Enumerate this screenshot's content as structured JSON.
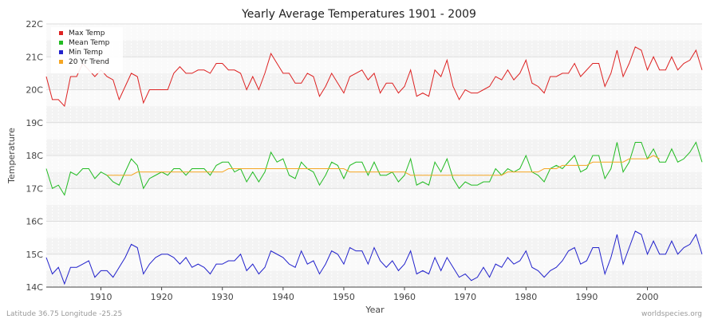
{
  "chart_data": {
    "type": "line",
    "title": "Yearly Average Temperatures 1901 - 2009",
    "xlabel": "Year",
    "ylabel": "Temperature",
    "xlim": [
      1901,
      2009
    ],
    "ylim": [
      14,
      22
    ],
    "x_ticks": [
      1910,
      1920,
      1930,
      1940,
      1950,
      1960,
      1970,
      1980,
      1990,
      2000
    ],
    "y_ticks": [
      {
        "value": 14,
        "label": "14C"
      },
      {
        "value": 15,
        "label": "15C"
      },
      {
        "value": 16,
        "label": "16C"
      },
      {
        "value": 17,
        "label": "17C"
      },
      {
        "value": 18,
        "label": "18C"
      },
      {
        "value": 19,
        "label": "19C"
      },
      {
        "value": 20,
        "label": "20C"
      },
      {
        "value": 21,
        "label": "21C"
      },
      {
        "value": 22,
        "label": "22C"
      }
    ],
    "grid": true,
    "legend_position": "top-left",
    "series": [
      {
        "name": "Max Temp",
        "color": "#dd2222",
        "x_start": 1901,
        "values": [
          20.4,
          19.7,
          19.7,
          19.5,
          20.4,
          20.4,
          20.8,
          20.6,
          20.4,
          20.6,
          20.4,
          20.3,
          19.7,
          20.1,
          20.5,
          20.4,
          19.6,
          20.0,
          20.0,
          20.0,
          20.0,
          20.5,
          20.7,
          20.5,
          20.5,
          20.6,
          20.6,
          20.5,
          20.8,
          20.8,
          20.6,
          20.6,
          20.5,
          20.0,
          20.4,
          20.0,
          20.5,
          21.1,
          20.8,
          20.5,
          20.5,
          20.2,
          20.2,
          20.5,
          20.4,
          19.8,
          20.1,
          20.5,
          20.2,
          19.9,
          20.4,
          20.5,
          20.6,
          20.3,
          20.5,
          19.9,
          20.2,
          20.2,
          19.9,
          20.1,
          20.6,
          19.8,
          19.9,
          19.8,
          20.6,
          20.4,
          20.9,
          20.1,
          19.7,
          20.0,
          19.9,
          19.9,
          20.0,
          20.1,
          20.4,
          20.3,
          20.6,
          20.3,
          20.5,
          20.9,
          20.2,
          20.1,
          19.9,
          20.4,
          20.4,
          20.5,
          20.5,
          20.8,
          20.4,
          20.6,
          20.8,
          20.8,
          20.1,
          20.5,
          21.2,
          20.4,
          20.8,
          21.3,
          21.2,
          20.6,
          21.0,
          20.6,
          20.6,
          21.0,
          20.6,
          20.8,
          20.9,
          21.2,
          20.6
        ]
      },
      {
        "name": "Mean Temp",
        "color": "#22bb22",
        "x_start": 1901,
        "values": [
          17.6,
          17.0,
          17.1,
          16.8,
          17.5,
          17.4,
          17.6,
          17.6,
          17.3,
          17.5,
          17.4,
          17.2,
          17.1,
          17.5,
          17.9,
          17.7,
          17.0,
          17.3,
          17.4,
          17.5,
          17.4,
          17.6,
          17.6,
          17.4,
          17.6,
          17.6,
          17.6,
          17.4,
          17.7,
          17.8,
          17.8,
          17.5,
          17.6,
          17.2,
          17.5,
          17.2,
          17.5,
          18.1,
          17.8,
          17.9,
          17.4,
          17.3,
          17.8,
          17.6,
          17.5,
          17.1,
          17.4,
          17.8,
          17.7,
          17.3,
          17.7,
          17.8,
          17.8,
          17.4,
          17.8,
          17.4,
          17.4,
          17.5,
          17.2,
          17.4,
          17.9,
          17.1,
          17.2,
          17.1,
          17.8,
          17.5,
          17.9,
          17.3,
          17.0,
          17.2,
          17.1,
          17.1,
          17.2,
          17.2,
          17.6,
          17.4,
          17.6,
          17.5,
          17.6,
          18.0,
          17.5,
          17.4,
          17.2,
          17.6,
          17.7,
          17.6,
          17.8,
          18.0,
          17.5,
          17.6,
          18.0,
          18.0,
          17.3,
          17.6,
          18.4,
          17.5,
          17.8,
          18.4,
          18.4,
          17.9,
          18.2,
          17.8,
          17.8,
          18.2,
          17.8,
          17.9,
          18.1,
          18.4,
          17.8
        ]
      },
      {
        "name": "Min Temp",
        "color": "#2222cc",
        "x_start": 1901,
        "values": [
          14.9,
          14.4,
          14.6,
          14.1,
          14.6,
          14.6,
          14.7,
          14.8,
          14.3,
          14.5,
          14.5,
          14.3,
          14.6,
          14.9,
          15.3,
          15.2,
          14.4,
          14.7,
          14.9,
          15.0,
          15.0,
          14.9,
          14.7,
          14.9,
          14.6,
          14.7,
          14.6,
          14.4,
          14.7,
          14.7,
          14.8,
          14.8,
          15.0,
          14.5,
          14.7,
          14.4,
          14.6,
          15.1,
          15.0,
          14.9,
          14.7,
          14.6,
          15.1,
          14.7,
          14.8,
          14.4,
          14.7,
          15.1,
          15.0,
          14.7,
          15.2,
          15.1,
          15.1,
          14.7,
          15.2,
          14.8,
          14.6,
          14.8,
          14.5,
          14.7,
          15.1,
          14.4,
          14.5,
          14.4,
          14.9,
          14.5,
          14.9,
          14.6,
          14.3,
          14.4,
          14.2,
          14.3,
          14.6,
          14.3,
          14.7,
          14.6,
          14.9,
          14.7,
          14.8,
          15.1,
          14.6,
          14.5,
          14.3,
          14.5,
          14.6,
          14.8,
          15.1,
          15.2,
          14.7,
          14.8,
          15.2,
          15.2,
          14.4,
          14.9,
          15.6,
          14.7,
          15.2,
          15.7,
          15.6,
          15.0,
          15.4,
          15.0,
          15.0,
          15.4,
          15.0,
          15.2,
          15.3,
          15.6,
          15.0
        ]
      },
      {
        "name": "20 Yr Trend",
        "color": "#f5a623",
        "x_start": 1911,
        "values": [
          17.4,
          17.4,
          17.4,
          17.4,
          17.4,
          17.5,
          17.5,
          17.5,
          17.5,
          17.5,
          17.5,
          17.5,
          17.5,
          17.5,
          17.5,
          17.5,
          17.5,
          17.5,
          17.5,
          17.5,
          17.6,
          17.6,
          17.6,
          17.6,
          17.6,
          17.6,
          17.6,
          17.6,
          17.6,
          17.6,
          17.6,
          17.6,
          17.6,
          17.6,
          17.6,
          17.6,
          17.6,
          17.6,
          17.6,
          17.6,
          17.5,
          17.5,
          17.5,
          17.5,
          17.5,
          17.5,
          17.5,
          17.5,
          17.5,
          17.5,
          17.4,
          17.4,
          17.4,
          17.4,
          17.4,
          17.4,
          17.4,
          17.4,
          17.4,
          17.4,
          17.4,
          17.4,
          17.4,
          17.4,
          17.4,
          17.4,
          17.5,
          17.5,
          17.5,
          17.5,
          17.5,
          17.5,
          17.6,
          17.6,
          17.6,
          17.7,
          17.7,
          17.7,
          17.7,
          17.7,
          17.8,
          17.8,
          17.8,
          17.8,
          17.8,
          17.8,
          17.9,
          17.9,
          17.9,
          17.9,
          18.0,
          17.9
        ]
      }
    ]
  },
  "footer": {
    "left": "Latitude 36.75 Longitude -25.25",
    "right": "worldspecies.org"
  }
}
